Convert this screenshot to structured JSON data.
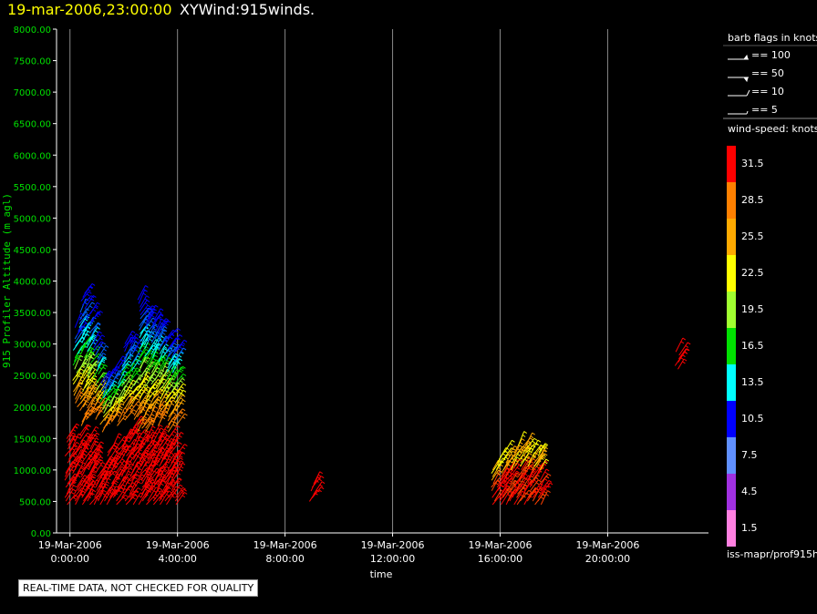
{
  "title": {
    "date": "19-mar-2006,23:00:00",
    "product": "XYWind:915winds."
  },
  "quality_note": "REAL-TIME DATA, NOT CHECKED FOR QUALITY",
  "source": "iss-mapr/prof915h",
  "legend": {
    "barb_title": "barb flags in knots",
    "barbs": [
      "== 100",
      "== 50",
      "== 10",
      "== 5"
    ],
    "speed_title": "wind-speed: knots",
    "speeds": [
      {
        "label": "31.5",
        "color": "#ff0000"
      },
      {
        "label": "28.5",
        "color": "#ff8000"
      },
      {
        "label": "25.5",
        "color": "#ffaa00"
      },
      {
        "label": "22.5",
        "color": "#ffff00"
      },
      {
        "label": "19.5",
        "color": "#a0ff30"
      },
      {
        "label": "16.5",
        "color": "#00e000"
      },
      {
        "label": "13.5",
        "color": "#00ffff"
      },
      {
        "label": "10.5",
        "color": "#0000ff"
      },
      {
        "label": "7.5",
        "color": "#6090ff"
      },
      {
        "label": "4.5",
        "color": "#a030e0"
      },
      {
        "label": "1.5",
        "color": "#ff80e0"
      }
    ]
  },
  "chart_data": {
    "type": "scatter",
    "xlabel": "time",
    "ylabel": "915 Profiler Altitude (m agl)",
    "xlim": [
      -0.5,
      23.75
    ],
    "ylim": [
      0,
      8000
    ],
    "y_ticks": [
      "0.00",
      "500.00",
      "1000.00",
      "1500.00",
      "2000.00",
      "2500.00",
      "3000.00",
      "3500.00",
      "4000.00",
      "4500.00",
      "5000.00",
      "5500.00",
      "6000.00",
      "6500.00",
      "7000.00",
      "7500.00",
      "8000.00"
    ],
    "x_ticks": [
      {
        "hour": 0,
        "date": "19-Mar-2006",
        "time": "0:00:00"
      },
      {
        "hour": 4,
        "date": "19-Mar-2006",
        "time": "4:00:00"
      },
      {
        "hour": 8,
        "date": "19-Mar-2006",
        "time": "8:00:00"
      },
      {
        "hour": 12,
        "date": "19-Mar-2006",
        "time": "12:00:00"
      },
      {
        "hour": 16,
        "date": "19-Mar-2006",
        "time": "16:00:00"
      },
      {
        "hour": 20,
        "date": "19-Mar-2006",
        "time": "20:00:00"
      }
    ],
    "grid": "vertical lines at x ticks",
    "profiles": [
      {
        "hour": -0.1,
        "top": 1600,
        "upper": null
      },
      {
        "hour": 0.2,
        "top": 1400,
        "upper": [
          2000,
          3300
        ]
      },
      {
        "hour": 0.45,
        "top": 1600,
        "upper": [
          1700,
          3800
        ]
      },
      {
        "hour": 0.7,
        "top": 1500,
        "upper": [
          1800,
          3500
        ]
      },
      {
        "hour": 0.95,
        "top": 1300,
        "upper": [
          1800,
          3000
        ]
      },
      {
        "hour": 1.2,
        "top": 1100,
        "upper": [
          1600,
          2400
        ]
      },
      {
        "hour": 1.45,
        "top": 1300,
        "upper": [
          1700,
          2500
        ]
      },
      {
        "hour": 1.7,
        "top": 1400,
        "upper": [
          1700,
          2600
        ]
      },
      {
        "hour": 2.0,
        "top": 1500,
        "upper": [
          1800,
          3000
        ]
      },
      {
        "hour": 2.3,
        "top": 1700,
        "upper": [
          1800,
          3000
        ]
      },
      {
        "hour": 2.6,
        "top": 1500,
        "upper": [
          1600,
          3700
        ]
      },
      {
        "hour": 2.85,
        "top": 1500,
        "upper": [
          1600,
          3500
        ]
      },
      {
        "hour": 3.1,
        "top": 1500,
        "upper": [
          1700,
          3400
        ]
      },
      {
        "hour": 3.35,
        "top": 1500,
        "upper": [
          1700,
          3300
        ]
      },
      {
        "hour": 3.6,
        "top": 1500,
        "upper": [
          1600,
          3100
        ]
      },
      {
        "hour": 3.85,
        "top": 1400,
        "upper": [
          1700,
          3000
        ]
      },
      {
        "hour": 9.0,
        "top": 800,
        "bottom": 500,
        "upper": null
      },
      {
        "hour": 15.7,
        "top": 1000,
        "upper": null
      },
      {
        "hour": 15.95,
        "top": 1200,
        "upper": null
      },
      {
        "hour": 16.2,
        "top": 1300,
        "upper": null
      },
      {
        "hour": 16.45,
        "top": 1300,
        "upper": null
      },
      {
        "hour": 16.7,
        "top": 1400,
        "upper": null
      },
      {
        "hour": 16.95,
        "top": 1400,
        "upper": null
      },
      {
        "hour": 17.2,
        "top": 1300,
        "upper": null
      },
      {
        "hour": 17.45,
        "top": 1300,
        "upper": null
      },
      {
        "hour": 22.6,
        "top": 2900,
        "bottom": 2600,
        "upper": null
      }
    ]
  }
}
